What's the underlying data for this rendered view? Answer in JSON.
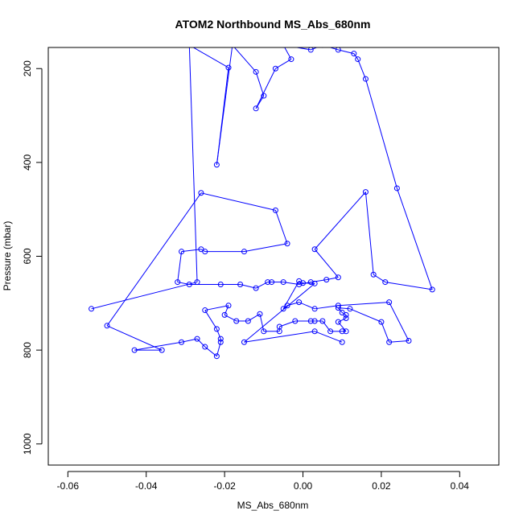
{
  "chart_data": {
    "type": "line",
    "title": "ATOM2 Northbound MS_Abs_680nm",
    "xlabel": "MS_Abs_680nm",
    "ylabel": "Pressure (mbar)",
    "xlim": [
      -0.065,
      0.05
    ],
    "ylim": [
      1045,
      155
    ],
    "y_reversed": true,
    "grid": false,
    "line_color": "#0000FF",
    "marker": "open-circle",
    "x_ticks": [
      -0.06,
      -0.04,
      -0.02,
      0.0,
      0.02,
      0.04
    ],
    "x_tick_labels": [
      "-0.06",
      "-0.04",
      "-0.02",
      "0.00",
      "0.02",
      "0.04"
    ],
    "y_ticks": [
      200,
      400,
      600,
      800,
      1000
    ],
    "y_tick_labels": [
      "200",
      "400",
      "600",
      "800",
      "1000"
    ],
    "series": [
      {
        "points": [
          [
            -0.054,
            712
          ],
          [
            -0.027,
            655
          ],
          [
            -0.029,
            150
          ],
          [
            -0.019,
            198
          ],
          [
            -0.022,
            405
          ],
          [
            -0.018,
            150
          ],
          [
            -0.012,
            207
          ],
          [
            -0.01,
            258
          ],
          [
            -0.012,
            285
          ],
          [
            -0.007,
            200
          ],
          [
            -0.003,
            180
          ],
          [
            -0.005,
            150
          ],
          [
            0.002,
            160
          ],
          [
            0.005,
            150
          ],
          [
            0.009,
            160
          ],
          [
            0.013,
            168
          ],
          [
            0.014,
            180
          ],
          [
            0.016,
            222
          ],
          [
            0.024,
            455
          ],
          [
            0.033,
            671
          ],
          [
            0.021,
            655
          ],
          [
            0.018,
            639
          ],
          [
            0.016,
            463
          ],
          [
            0.003,
            585
          ],
          [
            0.009,
            645
          ],
          [
            0.006,
            650
          ],
          [
            0.002,
            655
          ],
          [
            -0.001,
            660
          ],
          [
            -0.005,
            655
          ],
          [
            -0.008,
            655
          ],
          [
            -0.009,
            655
          ],
          [
            -0.012,
            668
          ],
          [
            -0.016,
            660
          ],
          [
            -0.021,
            660
          ],
          [
            -0.029,
            660
          ],
          [
            -0.032,
            655
          ],
          [
            -0.031,
            590
          ],
          [
            -0.026,
            585
          ],
          [
            -0.025,
            590
          ],
          [
            -0.015,
            590
          ],
          [
            -0.004,
            573
          ],
          [
            -0.007,
            502
          ],
          [
            -0.026,
            465
          ],
          [
            -0.05,
            748
          ],
          [
            -0.036,
            800
          ],
          [
            -0.043,
            800
          ],
          [
            -0.031,
            783
          ],
          [
            -0.027,
            776
          ],
          [
            -0.025,
            793
          ],
          [
            -0.022,
            813
          ],
          [
            -0.021,
            783
          ],
          [
            -0.021,
            776
          ],
          [
            -0.022,
            755
          ],
          [
            -0.025,
            715
          ],
          [
            -0.019,
            705
          ],
          [
            -0.02,
            725
          ],
          [
            -0.017,
            738
          ],
          [
            -0.014,
            738
          ],
          [
            -0.011,
            723
          ],
          [
            -0.01,
            760
          ],
          [
            -0.006,
            760
          ],
          [
            -0.006,
            750
          ],
          [
            -0.002,
            738
          ],
          [
            0.002,
            738
          ],
          [
            0.003,
            738
          ],
          [
            0.005,
            738
          ],
          [
            0.007,
            760
          ],
          [
            0.01,
            760
          ],
          [
            0.011,
            760
          ],
          [
            0.009,
            740
          ],
          [
            0.011,
            732
          ],
          [
            0.011,
            725
          ],
          [
            0.01,
            720
          ],
          [
            0.009,
            710
          ],
          [
            0.012,
            712
          ],
          [
            0.02,
            740
          ],
          [
            0.022,
            783
          ],
          [
            0.027,
            780
          ],
          [
            0.022,
            698
          ],
          [
            0.009,
            705
          ],
          [
            0.003,
            712
          ],
          [
            -0.001,
            698
          ],
          [
            -0.004,
            705
          ],
          [
            -0.005,
            712
          ],
          [
            -0.001,
            653
          ],
          [
            0.0,
            657
          ],
          [
            0.003,
            658
          ],
          [
            -0.015,
            783
          ],
          [
            0.003,
            760
          ],
          [
            0.01,
            783
          ]
        ]
      }
    ]
  }
}
